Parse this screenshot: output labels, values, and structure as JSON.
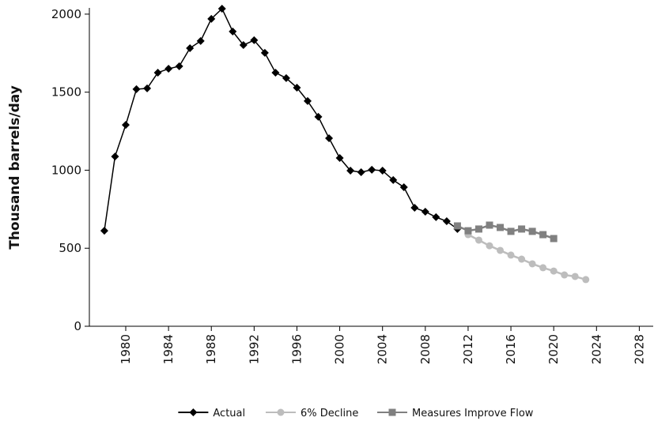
{
  "chart_data": {
    "type": "line",
    "ylabel": "Thousand barrels/day",
    "xlim": [
      1976.6,
      2029.3
    ],
    "xticks": [
      1980,
      1984,
      1988,
      1992,
      1996,
      2000,
      2004,
      2008,
      2012,
      2016,
      2020,
      2024,
      2028
    ],
    "ylim": [
      0,
      2040
    ],
    "yticks": [
      0,
      500,
      1000,
      1500,
      2000
    ],
    "legend": "bottom",
    "series": [
      {
        "name": "Actual",
        "color": "#000000",
        "marker": "diamond",
        "x": [
          1978,
          1979,
          1980,
          1981,
          1982,
          1983,
          1984,
          1985,
          1986,
          1987,
          1988,
          1989,
          1990,
          1991,
          1992,
          1993,
          1994,
          1995,
          1996,
          1997,
          1998,
          1999,
          2000,
          2001,
          2002,
          2003,
          2004,
          2005,
          2006,
          2007,
          2008,
          2009,
          2010,
          2011
        ],
        "values": [
          612,
          1088,
          1290,
          1519,
          1524,
          1625,
          1650,
          1666,
          1782,
          1828,
          1970,
          2035,
          1889,
          1802,
          1833,
          1752,
          1625,
          1590,
          1529,
          1443,
          1342,
          1205,
          1078,
          997,
          987,
          1003,
          997,
          937,
          891,
          759,
          734,
          699,
          673,
          623
        ]
      },
      {
        "name": "6% Decline",
        "color": "#bdbdbd",
        "marker": "circle",
        "x": [
          2012,
          2013,
          2014,
          2015,
          2016,
          2017,
          2018,
          2019,
          2020,
          2021,
          2022,
          2023
        ],
        "values": [
          587,
          552,
          516,
          486,
          456,
          430,
          400,
          375,
          354,
          329,
          319,
          299
        ]
      },
      {
        "name": "Measures Improve Flow",
        "color": "#808080",
        "marker": "square",
        "x": [
          2011,
          2012,
          2013,
          2014,
          2015,
          2016,
          2017,
          2018,
          2019,
          2020
        ],
        "values": [
          643,
          612,
          623,
          648,
          633,
          608,
          623,
          608,
          587,
          562
        ]
      }
    ]
  }
}
